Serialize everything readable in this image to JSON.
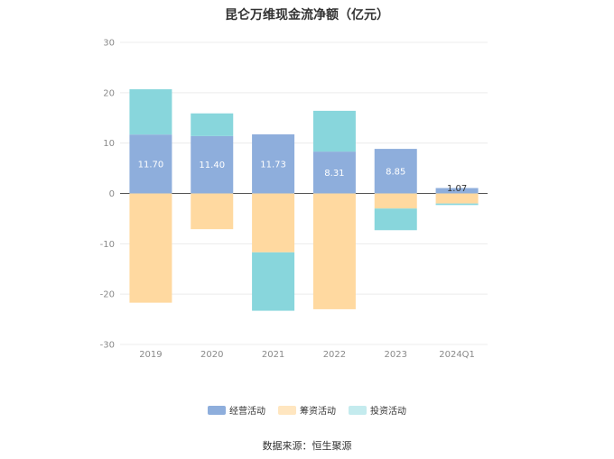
{
  "chart_data": {
    "type": "bar",
    "stacked": true,
    "title": "昆仑万维现金流净额（亿元）",
    "categories": [
      "2019",
      "2020",
      "2021",
      "2022",
      "2023",
      "2024Q1"
    ],
    "ylim": [
      -30,
      30
    ],
    "yticks": [
      30,
      20,
      10,
      0,
      -10,
      -20,
      -30
    ],
    "grid": true,
    "legend_position": "bottom",
    "series": [
      {
        "name": "经营活动",
        "color": "#8eaedc",
        "values": [
          11.7,
          11.4,
          11.73,
          8.31,
          8.85,
          1.07
        ],
        "labels": [
          "11.70",
          "11.40",
          "11.73",
          "8.31",
          "8.85",
          "1.07"
        ]
      },
      {
        "name": "筹资活动",
        "color": "#ffd9a0",
        "values": [
          -21.7,
          -7.1,
          -11.7,
          -23.0,
          -3.0,
          -2.0
        ]
      },
      {
        "name": "投资活动",
        "color": "#88d6dc",
        "values": [
          9.0,
          4.5,
          -11.6,
          8.1,
          -4.3,
          -0.3
        ]
      }
    ]
  },
  "source": "数据来源：恒生聚源"
}
